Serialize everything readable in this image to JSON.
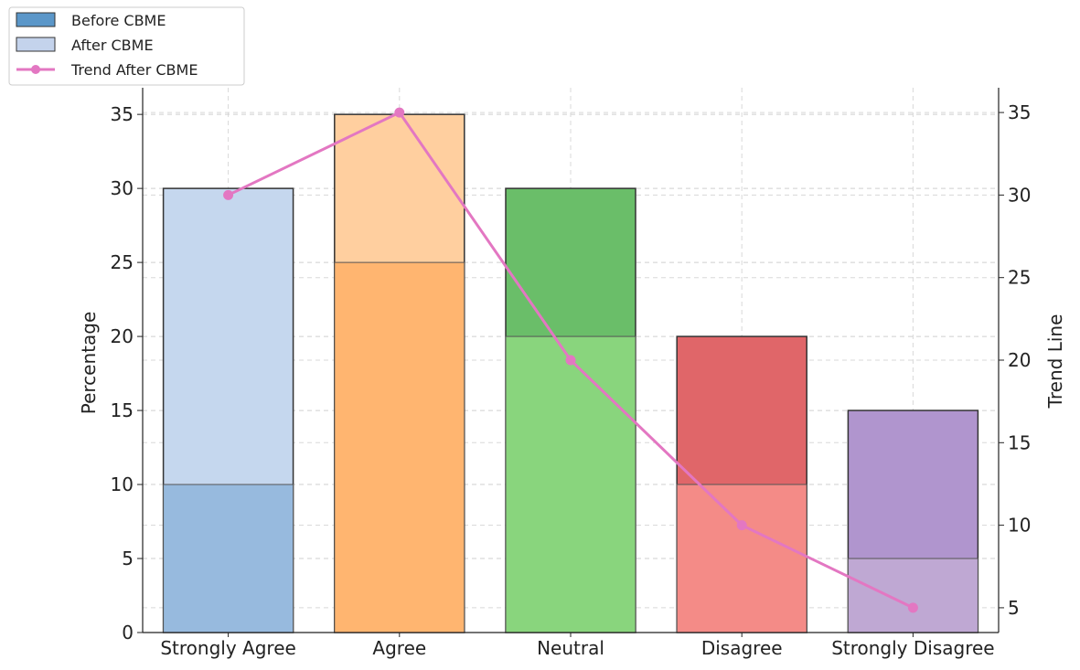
{
  "chart_data": {
    "type": "bar",
    "categories": [
      "Strongly Agree",
      "Agree",
      "Neutral",
      "Disagree",
      "Strongly Disagree"
    ],
    "series": [
      {
        "name": "Before CBME",
        "values": [
          10,
          25,
          20,
          10,
          5
        ]
      },
      {
        "name": "After CBME",
        "values": [
          30,
          35,
          30,
          20,
          15
        ]
      }
    ],
    "trend": {
      "name": "Trend After CBME",
      "values": [
        30,
        35,
        20,
        10,
        5
      ]
    },
    "ylabel": "Percentage",
    "ylim": [
      0,
      36.8
    ],
    "y_ticks": [
      0,
      5,
      10,
      15,
      20,
      25,
      30,
      35
    ],
    "y2label": "Trend Line",
    "y2lim": [
      3.5,
      36.5
    ],
    "y2_ticks": [
      5,
      10,
      15,
      20,
      25,
      30,
      35
    ],
    "grid": true,
    "legend_position": "top-left",
    "colors": {
      "legend_before": "#5b97c9",
      "legend_after": "#c4d3ec",
      "trend": "#e377c2",
      "category_before": [
        "#97bade",
        "#ffb570",
        "#89d57d",
        "#f48b87",
        "#bfa8d3"
      ],
      "category_after": [
        "#c5d7ee",
        "#ffcf9f",
        "#6abe69",
        "#e06669",
        "#b095ce"
      ]
    }
  }
}
